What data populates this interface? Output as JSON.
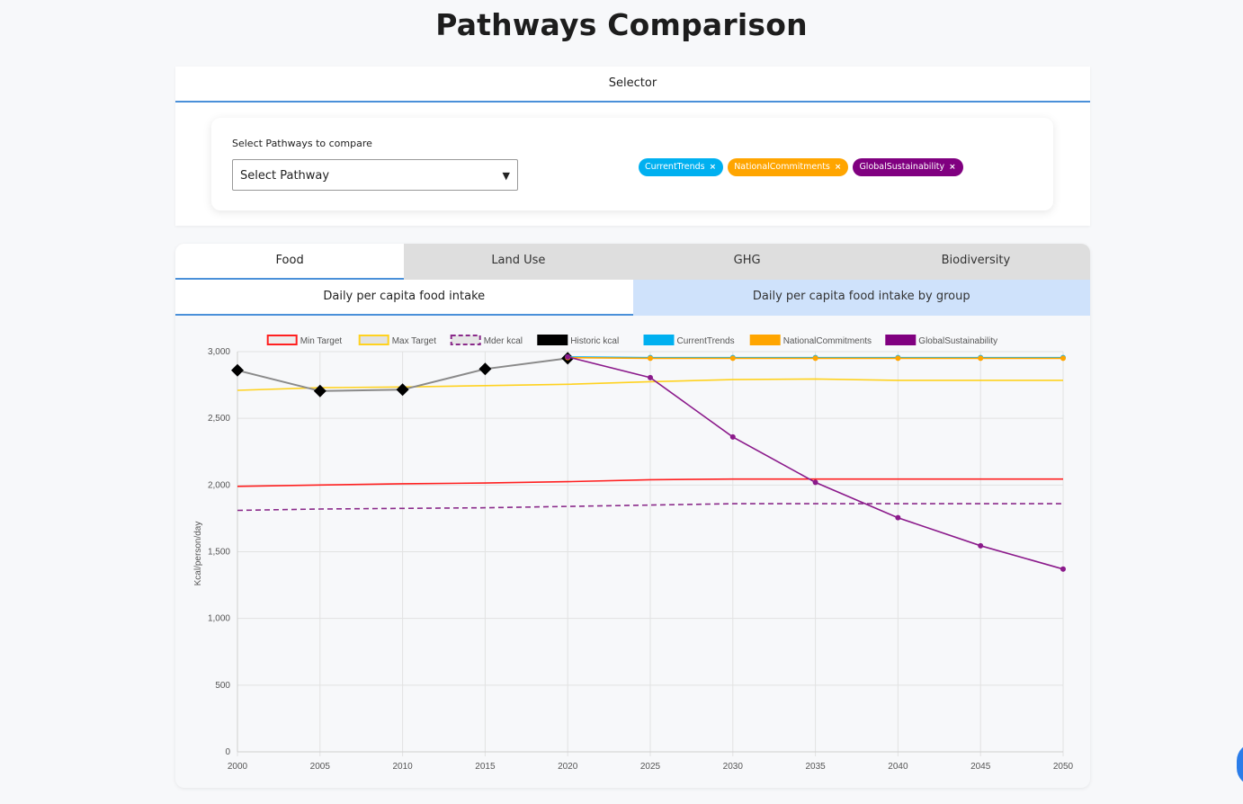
{
  "page": {
    "title": "Pathways Comparison"
  },
  "selector": {
    "header": "Selector",
    "label": "Select Pathways to compare",
    "select_value": "Select Pathway",
    "arrow": "▼",
    "tags": [
      {
        "label": "CurrentTrends",
        "color": "#00b0f0",
        "remove": "×"
      },
      {
        "label": "NationalCommitments",
        "color": "#ffa500",
        "remove": "×"
      },
      {
        "label": "GlobalSustainability",
        "color": "#800080",
        "remove": "×"
      }
    ]
  },
  "tabs": {
    "main": [
      "Food",
      "Land Use",
      "GHG",
      "Biodiversity"
    ],
    "active_main": 0,
    "sub": [
      "Daily per capita food intake",
      "Daily per capita food intake by group"
    ],
    "active_sub": 0
  },
  "chart_data": {
    "type": "line",
    "title": "",
    "xlabel": "",
    "ylabel": "Kcal/person/day",
    "categories": [
      2000,
      2005,
      2010,
      2015,
      2020,
      2025,
      2030,
      2035,
      2040,
      2045,
      2050
    ],
    "x_tick_labels": [
      "2000",
      "2005",
      "2010",
      "2015",
      "2020",
      "2025",
      "2030",
      "2035",
      "2040",
      "2045",
      "2050"
    ],
    "ylim": [
      0,
      3000
    ],
    "y_ticks": [
      0,
      500,
      1000,
      1500,
      2000,
      2500,
      3000
    ],
    "y_tick_labels": [
      "0",
      "500",
      "1,000",
      "1,500",
      "2,000",
      "2,500",
      "3,000"
    ],
    "grid": true,
    "legend_position": "top-center",
    "series": [
      {
        "name": "Min Target",
        "color": "#ff2020",
        "dash": false,
        "markers": false,
        "values": [
          1990,
          2000,
          2010,
          2015,
          2025,
          2040,
          2045,
          2045,
          2045,
          2045,
          2045
        ]
      },
      {
        "name": "Max Target",
        "color": "#ffd21f",
        "dash": false,
        "markers": false,
        "values": [
          2710,
          2730,
          2735,
          2745,
          2755,
          2775,
          2790,
          2795,
          2785,
          2785,
          2785
        ]
      },
      {
        "name": "Mder kcal",
        "color": "#8a2a8a",
        "dash": true,
        "markers": false,
        "values": [
          1810,
          1820,
          1825,
          1830,
          1840,
          1850,
          1860,
          1860,
          1860,
          1860,
          1860
        ]
      },
      {
        "name": "Historic kcal",
        "color": "#8a8a8a",
        "dash": false,
        "markers": "diamond",
        "values": [
          2860,
          2705,
          2715,
          2870,
          2950,
          null,
          null,
          null,
          null,
          null,
          null
        ]
      },
      {
        "name": "CurrentTrends",
        "color": "#00b0f0",
        "dash": false,
        "markers": "dot",
        "values": [
          null,
          null,
          null,
          null,
          2960,
          2955,
          2955,
          2955,
          2955,
          2955,
          2955
        ]
      },
      {
        "name": "NationalCommitments",
        "color": "#ffa500",
        "dash": false,
        "markers": "dot",
        "values": [
          null,
          null,
          null,
          null,
          2955,
          2950,
          2950,
          2950,
          2950,
          2950,
          2950
        ]
      },
      {
        "name": "GlobalSustainability",
        "color": "#8b1a8b",
        "dash": false,
        "markers": "dot",
        "values": [
          null,
          null,
          null,
          null,
          2960,
          2805,
          2360,
          2020,
          1755,
          1545,
          1370
        ]
      }
    ],
    "legend": [
      {
        "name": "Min Target",
        "fill": "#ececec",
        "stroke": "#ff2020",
        "dash": false
      },
      {
        "name": "Max Target",
        "fill": "#e2e2e2",
        "stroke": "#ffd21f",
        "dash": false
      },
      {
        "name": "Mder kcal",
        "fill": "#e6e6e6",
        "stroke": "#8a2a8a",
        "dash": true
      },
      {
        "name": "Historic kcal",
        "fill": "#000000",
        "stroke": "#000000",
        "dash": false
      },
      {
        "name": "CurrentTrends",
        "fill": "#00b0f0",
        "stroke": "#00b0f0",
        "dash": false
      },
      {
        "name": "NationalCommitments",
        "fill": "#ffa500",
        "stroke": "#ffa500",
        "dash": false
      },
      {
        "name": "GlobalSustainability",
        "fill": "#800080",
        "stroke": "#800080",
        "dash": false
      }
    ]
  }
}
